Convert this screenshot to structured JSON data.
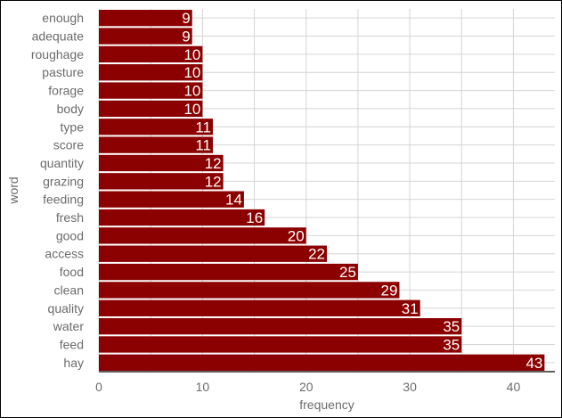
{
  "chart_data": {
    "type": "bar",
    "orientation": "horizontal",
    "categories": [
      "enough",
      "adequate",
      "roughage",
      "pasture",
      "forage",
      "body",
      "type",
      "score",
      "quantity",
      "grazing",
      "feeding",
      "fresh",
      "good",
      "access",
      "food",
      "clean",
      "quality",
      "water",
      "feed",
      "hay"
    ],
    "values": [
      9,
      9,
      10,
      10,
      10,
      10,
      11,
      11,
      12,
      12,
      14,
      16,
      20,
      22,
      25,
      29,
      31,
      35,
      35,
      43
    ],
    "xlabel": "frequency",
    "ylabel": "word",
    "xlim": [
      0,
      44
    ],
    "xticks": [
      0,
      10,
      20,
      30,
      40
    ],
    "bar_color": "#8b0000",
    "label_color": "#ffffff",
    "grid": true,
    "legend": "none"
  }
}
